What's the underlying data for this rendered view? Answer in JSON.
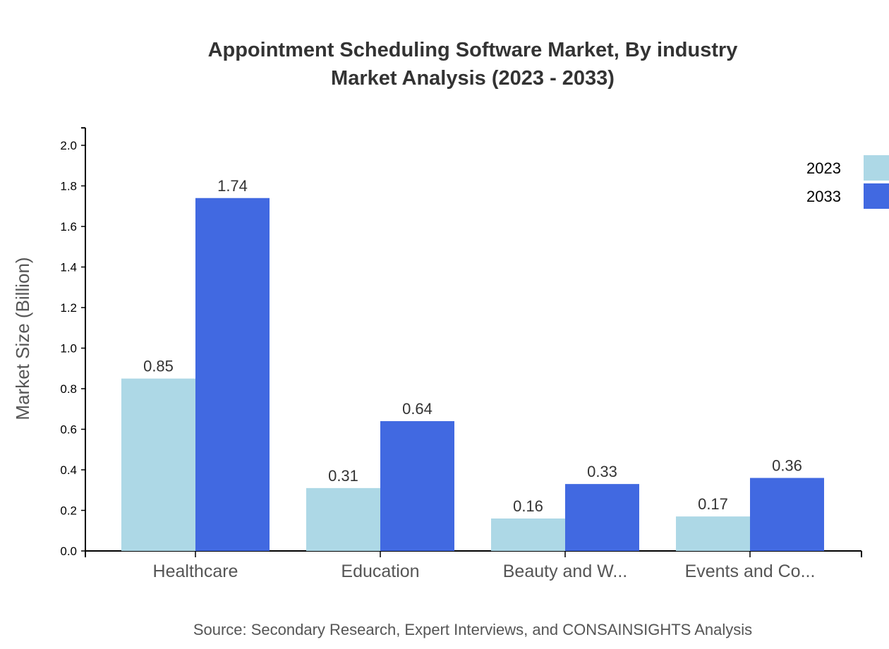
{
  "chart_data": {
    "type": "bar",
    "title": "Appointment Scheduling Software Market, By industry",
    "subtitle": "Market Analysis (2023 - 2033)",
    "ylabel": "Market Size (Billion)",
    "xlabel": "",
    "ylim": [
      0,
      2.1
    ],
    "yticks": [
      "0.0",
      "0.2",
      "0.4",
      "0.6",
      "0.8",
      "1.0",
      "1.2",
      "1.4",
      "1.6",
      "1.8",
      "2.0"
    ],
    "categories": [
      "Healthcare",
      "Education",
      "Beauty and W...",
      "Events and Co..."
    ],
    "series": [
      {
        "name": "2023",
        "color": "#ADD8E6",
        "values": [
          0.85,
          0.31,
          0.16,
          0.17
        ]
      },
      {
        "name": "2033",
        "color": "#4169E1",
        "values": [
          1.74,
          0.64,
          0.33,
          0.36
        ]
      }
    ],
    "legend_position": "top-right",
    "grid": false,
    "source": "Source: Secondary Research, Expert Interviews, and CONSAINSIGHTS Analysis"
  }
}
